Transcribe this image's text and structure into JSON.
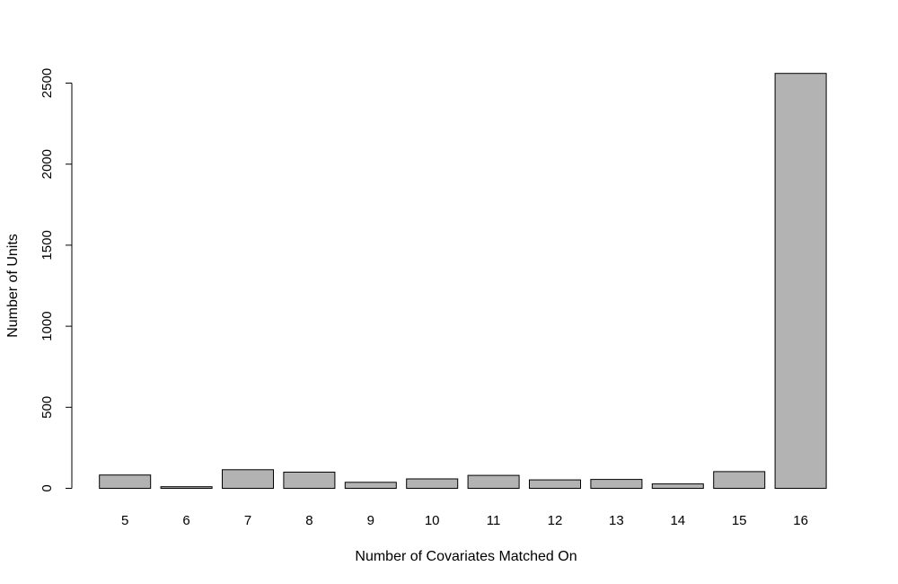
{
  "chart_data": {
    "type": "bar",
    "title": "",
    "xlabel": "Number of Covariates Matched On",
    "ylabel": "Number of Units",
    "categories": [
      "5",
      "6",
      "7",
      "8",
      "9",
      "10",
      "11",
      "12",
      "13",
      "14",
      "15",
      "16"
    ],
    "values": [
      82,
      10,
      115,
      100,
      37,
      58,
      80,
      52,
      55,
      27,
      103,
      2560
    ],
    "ylim": [
      0,
      2500
    ],
    "yticks": [
      "0",
      "500",
      "1000",
      "1500",
      "2000",
      "2500"
    ],
    "grid": false,
    "legend": "none",
    "bar_color": "#b3b3b3",
    "bar_edge_color": "#000000"
  }
}
